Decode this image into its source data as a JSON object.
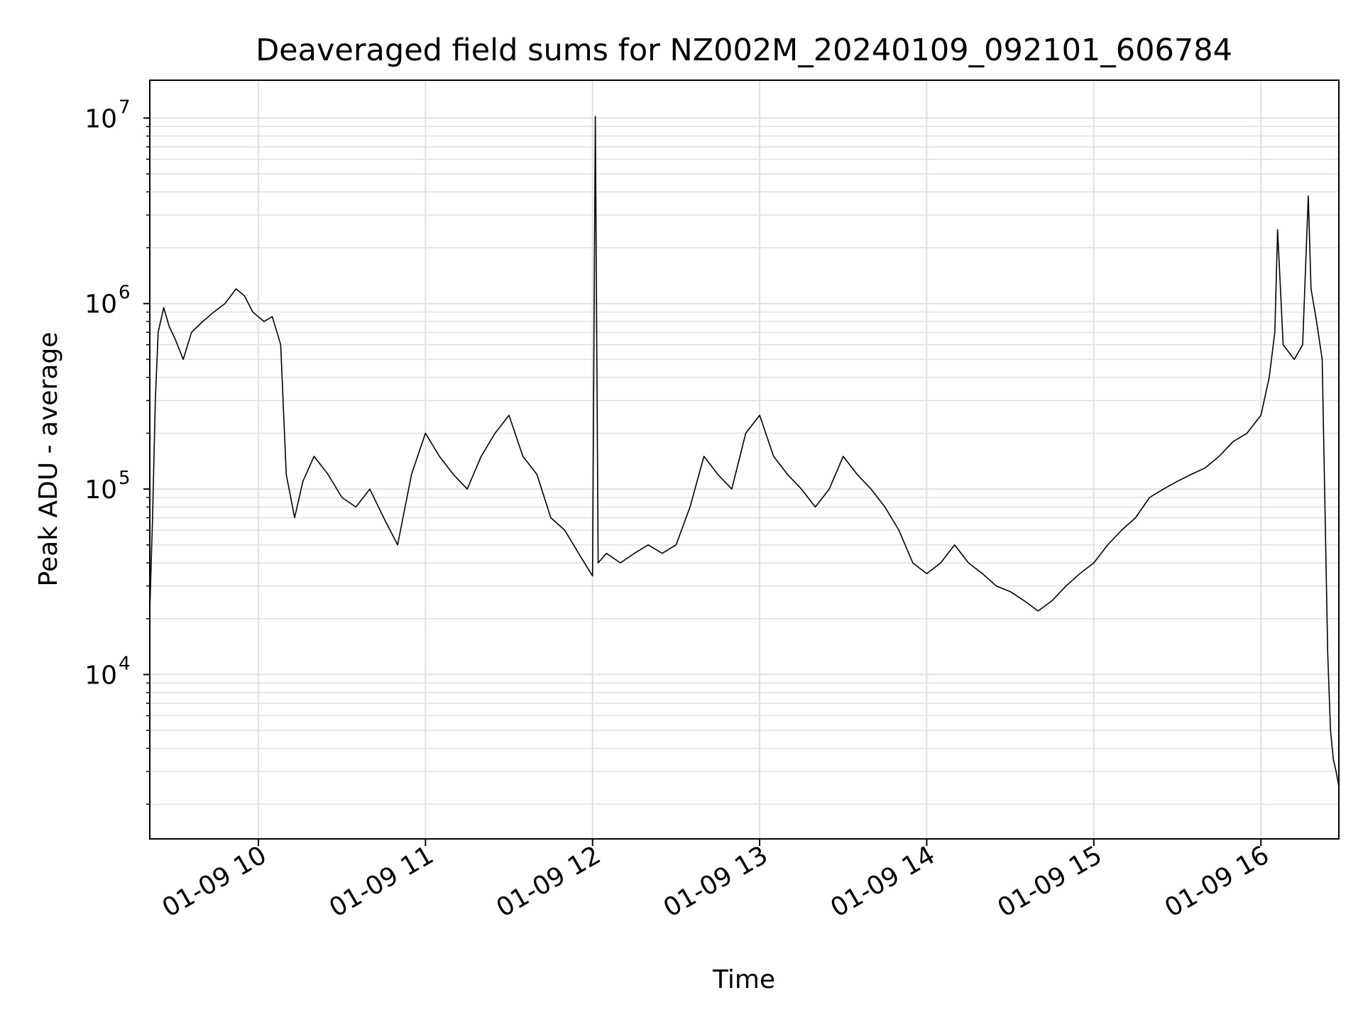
{
  "chart_data": {
    "type": "line",
    "title": "Deaveraged field sums for NZ002M_20240109_092101_606784",
    "xlabel": "Time",
    "ylabel": "Peak ADU - average",
    "x_axis": {
      "type": "datetime",
      "range": [
        "01-09 09:21",
        "01-09 16:28"
      ],
      "ticks": [
        {
          "value": "01-09 10:00",
          "label": "01-09 10"
        },
        {
          "value": "01-09 11:00",
          "label": "01-09 11"
        },
        {
          "value": "01-09 12:00",
          "label": "01-09 12"
        },
        {
          "value": "01-09 13:00",
          "label": "01-09 13"
        },
        {
          "value": "01-09 14:00",
          "label": "01-09 14"
        },
        {
          "value": "01-09 15:00",
          "label": "01-09 15"
        },
        {
          "value": "01-09 16:00",
          "label": "01-09 16"
        }
      ]
    },
    "y_axis": {
      "scale": "log",
      "range": [
        1300,
        16000000
      ],
      "ticks": [
        {
          "value": 10000,
          "base": "10",
          "exp": "4"
        },
        {
          "value": 100000,
          "base": "10",
          "exp": "5"
        },
        {
          "value": 1000000,
          "base": "10",
          "exp": "6"
        },
        {
          "value": 10000000,
          "base": "10",
          "exp": "7"
        }
      ]
    },
    "grid": true,
    "series": [
      {
        "color": "#000000",
        "points": [
          [
            "01-09 09:21",
            22000
          ],
          [
            "01-09 09:22",
            70000
          ],
          [
            "01-09 09:23",
            300000
          ],
          [
            "01-09 09:24",
            700000
          ],
          [
            "01-09 09:26",
            950000
          ],
          [
            "01-09 09:28",
            750000
          ],
          [
            "01-09 09:30",
            650000
          ],
          [
            "01-09 09:33",
            500000
          ],
          [
            "01-09 09:36",
            700000
          ],
          [
            "01-09 09:40",
            800000
          ],
          [
            "01-09 09:44",
            900000
          ],
          [
            "01-09 09:48",
            1000000
          ],
          [
            "01-09 09:52",
            1200000
          ],
          [
            "01-09 09:55",
            1100000
          ],
          [
            "01-09 09:58",
            900000
          ],
          [
            "01-09 10:02",
            800000
          ],
          [
            "01-09 10:05",
            850000
          ],
          [
            "01-09 10:08",
            600000
          ],
          [
            "01-09 10:10",
            120000
          ],
          [
            "01-09 10:13",
            70000
          ],
          [
            "01-09 10:16",
            110000
          ],
          [
            "01-09 10:20",
            150000
          ],
          [
            "01-09 10:25",
            120000
          ],
          [
            "01-09 10:30",
            90000
          ],
          [
            "01-09 10:35",
            80000
          ],
          [
            "01-09 10:40",
            100000
          ],
          [
            "01-09 10:45",
            70000
          ],
          [
            "01-09 10:50",
            50000
          ],
          [
            "01-09 10:55",
            120000
          ],
          [
            "01-09 11:00",
            200000
          ],
          [
            "01-09 11:05",
            150000
          ],
          [
            "01-09 11:10",
            120000
          ],
          [
            "01-09 11:15",
            100000
          ],
          [
            "01-09 11:20",
            150000
          ],
          [
            "01-09 11:25",
            200000
          ],
          [
            "01-09 11:30",
            250000
          ],
          [
            "01-09 11:35",
            150000
          ],
          [
            "01-09 11:40",
            120000
          ],
          [
            "01-09 11:45",
            70000
          ],
          [
            "01-09 11:50",
            60000
          ],
          [
            "01-09 11:55",
            45000
          ],
          [
            "01-09 11:58",
            38000
          ],
          [
            "01-09 12:00",
            34000
          ],
          [
            "01-09 12:01",
            10200000
          ],
          [
            "01-09 12:02",
            40000
          ],
          [
            "01-09 12:05",
            45000
          ],
          [
            "01-09 12:10",
            40000
          ],
          [
            "01-09 12:15",
            45000
          ],
          [
            "01-09 12:20",
            50000
          ],
          [
            "01-09 12:25",
            45000
          ],
          [
            "01-09 12:30",
            50000
          ],
          [
            "01-09 12:35",
            80000
          ],
          [
            "01-09 12:40",
            150000
          ],
          [
            "01-09 12:45",
            120000
          ],
          [
            "01-09 12:50",
            100000
          ],
          [
            "01-09 12:55",
            200000
          ],
          [
            "01-09 13:00",
            250000
          ],
          [
            "01-09 13:05",
            150000
          ],
          [
            "01-09 13:10",
            120000
          ],
          [
            "01-09 13:15",
            100000
          ],
          [
            "01-09 13:20",
            80000
          ],
          [
            "01-09 13:25",
            100000
          ],
          [
            "01-09 13:30",
            150000
          ],
          [
            "01-09 13:35",
            120000
          ],
          [
            "01-09 13:40",
            100000
          ],
          [
            "01-09 13:45",
            80000
          ],
          [
            "01-09 13:50",
            60000
          ],
          [
            "01-09 13:55",
            40000
          ],
          [
            "01-09 14:00",
            35000
          ],
          [
            "01-09 14:05",
            40000
          ],
          [
            "01-09 14:10",
            50000
          ],
          [
            "01-09 14:15",
            40000
          ],
          [
            "01-09 14:20",
            35000
          ],
          [
            "01-09 14:25",
            30000
          ],
          [
            "01-09 14:30",
            28000
          ],
          [
            "01-09 14:35",
            25000
          ],
          [
            "01-09 14:40",
            22000
          ],
          [
            "01-09 14:45",
            25000
          ],
          [
            "01-09 14:50",
            30000
          ],
          [
            "01-09 14:55",
            35000
          ],
          [
            "01-09 15:00",
            40000
          ],
          [
            "01-09 15:05",
            50000
          ],
          [
            "01-09 15:10",
            60000
          ],
          [
            "01-09 15:15",
            70000
          ],
          [
            "01-09 15:20",
            90000
          ],
          [
            "01-09 15:25",
            100000
          ],
          [
            "01-09 15:30",
            110000
          ],
          [
            "01-09 15:35",
            120000
          ],
          [
            "01-09 15:40",
            130000
          ],
          [
            "01-09 15:45",
            150000
          ],
          [
            "01-09 15:50",
            180000
          ],
          [
            "01-09 15:55",
            200000
          ],
          [
            "01-09 16:00",
            250000
          ],
          [
            "01-09 16:03",
            400000
          ],
          [
            "01-09 16:05",
            700000
          ],
          [
            "01-09 16:06",
            2500000
          ],
          [
            "01-09 16:08",
            600000
          ],
          [
            "01-09 16:12",
            500000
          ],
          [
            "01-09 16:15",
            600000
          ],
          [
            "01-09 16:17",
            3800000
          ],
          [
            "01-09 16:18",
            1200000
          ],
          [
            "01-09 16:20",
            800000
          ],
          [
            "01-09 16:22",
            500000
          ],
          [
            "01-09 16:24",
            13000
          ],
          [
            "01-09 16:25",
            5000
          ],
          [
            "01-09 16:26",
            3500
          ],
          [
            "01-09 16:27",
            3000
          ],
          [
            "01-09 16:28",
            2500
          ]
        ]
      }
    ]
  }
}
